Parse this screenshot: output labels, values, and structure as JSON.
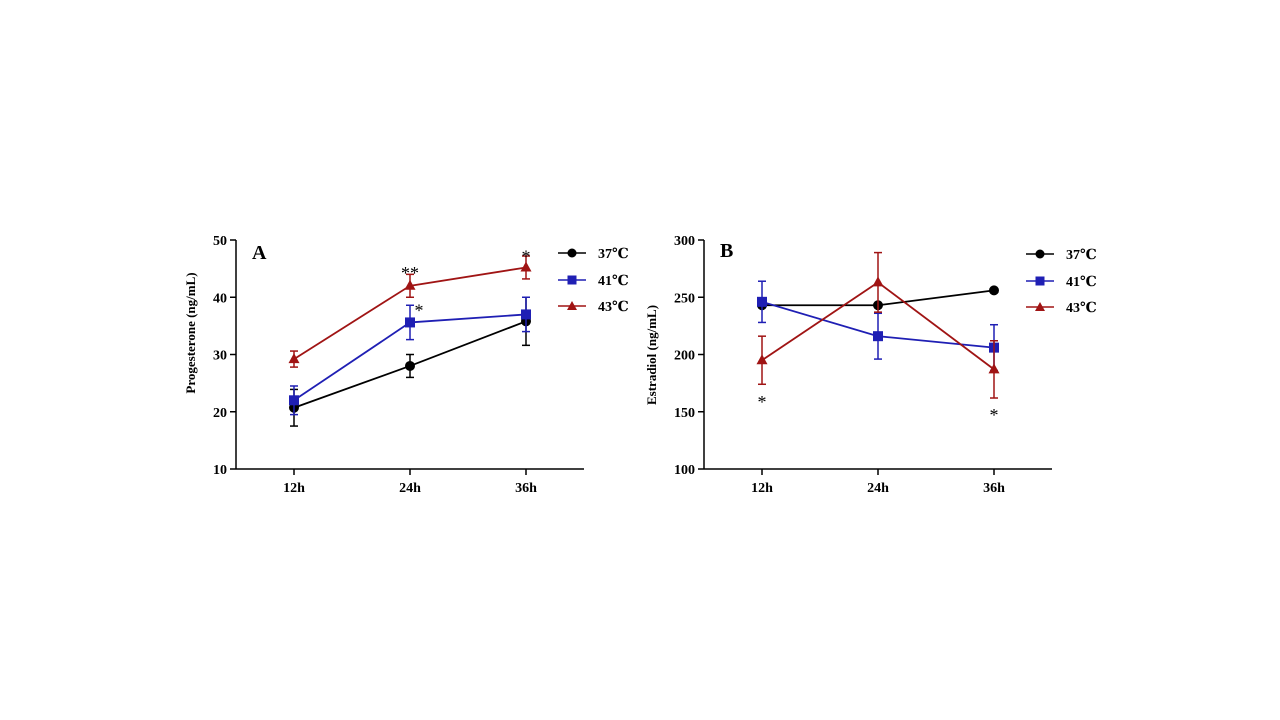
{
  "chart_data": [
    {
      "type": "line",
      "panel_label": "A",
      "title": "",
      "xlabel": "",
      "ylabel": "Progesterone (ng/mL)",
      "categories": [
        "12h",
        "24h",
        "36h"
      ],
      "ylim": [
        10,
        50
      ],
      "yticks": [
        10,
        20,
        30,
        40,
        50
      ],
      "legend_position": "right",
      "series": [
        {
          "name": "37℃",
          "marker": "circle",
          "color": "#000000",
          "values": [
            20.7,
            28.0,
            35.8
          ],
          "errors": [
            3.2,
            2.0,
            4.2
          ]
        },
        {
          "name": "41℃",
          "marker": "square",
          "color": "#1f1fb4",
          "values": [
            22.0,
            35.6,
            37.0
          ],
          "errors": [
            2.5,
            3.0,
            3.0
          ]
        },
        {
          "name": "43℃",
          "marker": "triangle",
          "color": "#a01414",
          "values": [
            29.2,
            42.0,
            45.2
          ],
          "errors": [
            1.4,
            2.0,
            2.0
          ]
        }
      ],
      "annotations": [
        {
          "text": "**",
          "category": "24h",
          "y": 44.8
        },
        {
          "text": "*",
          "category": "24h",
          "y": 38.2,
          "offset": "right"
        },
        {
          "text": "*",
          "category": "36h",
          "y": 47.6
        }
      ]
    },
    {
      "type": "line",
      "panel_label": "B",
      "title": "",
      "xlabel": "",
      "ylabel": "Estradiol (ng/mL)",
      "categories": [
        "12h",
        "24h",
        "36h"
      ],
      "ylim": [
        100,
        300
      ],
      "yticks": [
        100,
        150,
        200,
        250,
        300
      ],
      "legend_position": "right",
      "series": [
        {
          "name": "37℃",
          "marker": "circle",
          "color": "#000000",
          "values": [
            243,
            243,
            256
          ],
          "errors": [
            0,
            0,
            0
          ]
        },
        {
          "name": "41℃",
          "marker": "square",
          "color": "#1f1fb4",
          "values": [
            246,
            216,
            206
          ],
          "errors": [
            18,
            20,
            20
          ]
        },
        {
          "name": "43℃",
          "marker": "triangle",
          "color": "#a01414",
          "values": [
            195,
            263,
            187
          ],
          "errors": [
            21,
            26,
            25
          ]
        }
      ],
      "annotations": [
        {
          "text": "*",
          "category": "12h",
          "y": 161
        },
        {
          "text": "*",
          "category": "36h",
          "y": 150
        }
      ]
    }
  ]
}
